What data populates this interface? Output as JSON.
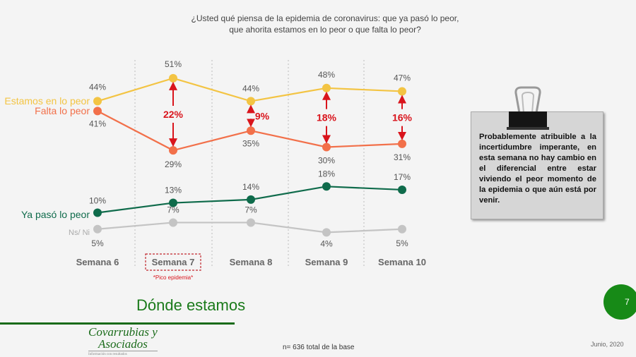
{
  "question": [
    "¿Usted qué piensa de la epidemia de coronavirus: que ya pasó lo peor,",
    "que ahorita estamos en lo peor o que falta lo peor?"
  ],
  "chart_data": {
    "type": "line",
    "categories": [
      "Semana 6",
      "Semana 7",
      "Semana 8",
      "Semana 9",
      "Semana 10"
    ],
    "series": [
      {
        "name": "Estamos en lo peor",
        "values": [
          44,
          51,
          44,
          48,
          47
        ],
        "color": "#f3c443"
      },
      {
        "name": "Falta lo peor",
        "values": [
          41,
          29,
          35,
          30,
          31
        ],
        "color": "#f2704a"
      },
      {
        "name": "Ya pasó lo peor",
        "values": [
          10,
          13,
          14,
          18,
          17
        ],
        "color": "#0f6b4b"
      },
      {
        "name": "Ns/ Ni",
        "values": [
          5,
          7,
          7,
          4,
          5
        ],
        "color": "#c4c4c4"
      }
    ],
    "differences": [
      {
        "category": "Semana 7",
        "label": "22%"
      },
      {
        "category": "Semana 8",
        "label": "9%"
      },
      {
        "category": "Semana 9",
        "label": "18%"
      },
      {
        "category": "Semana 10",
        "label": "16%"
      }
    ],
    "highlight": {
      "category": "Semana 7",
      "note": "*Pico epidemia*"
    },
    "value_suffix": "%",
    "diff_color": "#d9141c"
  },
  "note": "Probablemente atribuible a  la incertidumbre imperante, en esta semana no hay cambio en el diferencial entre estar viviendo el peor momento de la epidemia o que aún está por venir.",
  "section_title": "Dónde estamos",
  "logo": {
    "line1": "Covarrubias y",
    "line2": "Asociados",
    "tagline": "Información con resultados"
  },
  "base": "n= 636 total de la base",
  "date": "Junio, 2020",
  "page_number": "7"
}
